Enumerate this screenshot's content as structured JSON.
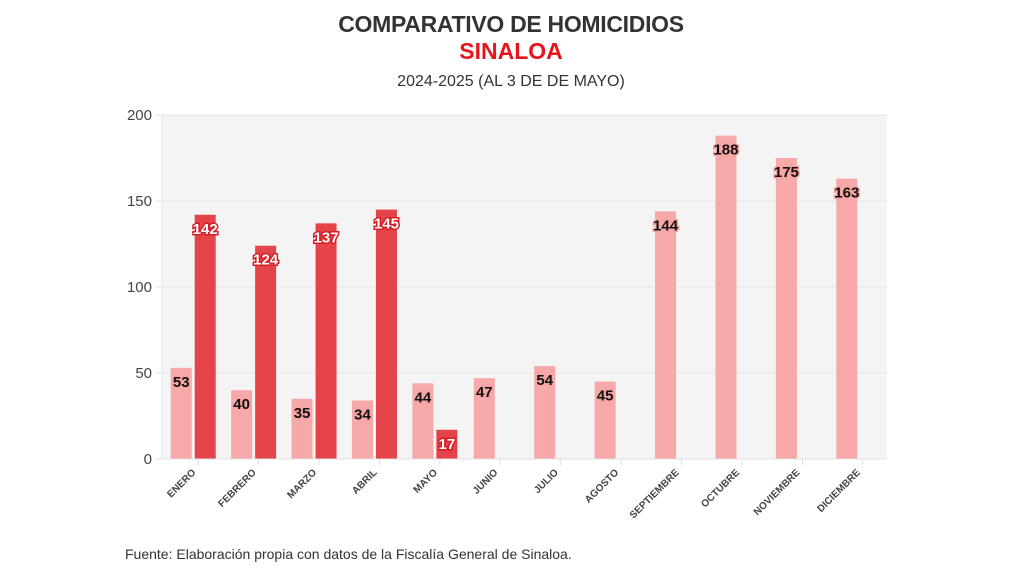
{
  "header": {
    "title": "COMPARATIVO DE HOMICIDIOS",
    "region": "SINALOA",
    "period": "2024-2025 (AL 3 DE DE MAYO)"
  },
  "footer": {
    "source": "Fuente: Elaboración propia con datos de la Fiscalía General de Sinaloa."
  },
  "colors": {
    "series_2024": "#f7a9a9",
    "series_2025": "#e5434a",
    "plot_background": "#f4f4f4",
    "title": "#333333",
    "region": "#e8141c"
  },
  "chart_data": {
    "type": "bar",
    "title": "COMPARATIVO DE HOMICIDIOS",
    "subtitle": "SINALOA — 2024-2025 (AL 3 DE DE MAYO)",
    "xlabel": "",
    "ylabel": "",
    "ylim": [
      0,
      200
    ],
    "yticks": [
      0,
      50,
      100,
      150,
      200
    ],
    "grid": true,
    "legend": "none",
    "categories": [
      "ENERO",
      "FEBRERO",
      "MARZO",
      "ABRIL",
      "MAYO",
      "JUNIO",
      "JULIO",
      "AGOSTO",
      "SEPTIEMBRE",
      "OCTUBRE",
      "NOVIEMBRE",
      "DICIEMBRE"
    ],
    "series": [
      {
        "name": "2024",
        "values": [
          53,
          40,
          35,
          34,
          44,
          47,
          54,
          45,
          144,
          188,
          175,
          163
        ]
      },
      {
        "name": "2025",
        "values": [
          142,
          124,
          137,
          145,
          17,
          null,
          null,
          null,
          null,
          null,
          null,
          null
        ]
      }
    ]
  }
}
